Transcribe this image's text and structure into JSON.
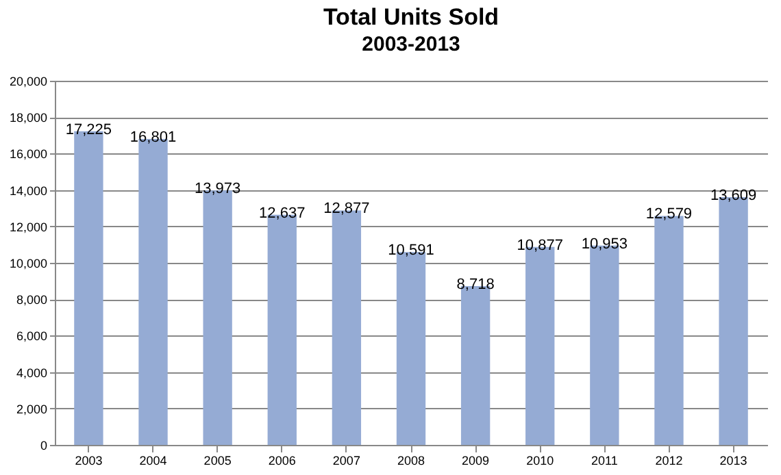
{
  "chart_data": {
    "type": "bar",
    "title": "Total Units Sold",
    "subtitle": "2003-2013",
    "categories": [
      "2003",
      "2004",
      "2005",
      "2006",
      "2007",
      "2008",
      "2009",
      "2010",
      "2011",
      "2012",
      "2013"
    ],
    "values": [
      17225,
      16801,
      13973,
      12637,
      12877,
      10591,
      8718,
      10877,
      10953,
      12579,
      13609
    ],
    "color": "#95abd4",
    "ylim": [
      0,
      20000
    ],
    "yticks": [
      {
        "value": 0,
        "label": "0"
      },
      {
        "value": 2000,
        "label": "2,000"
      },
      {
        "value": 4000,
        "label": "4,000"
      },
      {
        "value": 6000,
        "label": "6,000"
      },
      {
        "value": 8000,
        "label": "8,000"
      },
      {
        "value": 10000,
        "label": "10,000"
      },
      {
        "value": 12000,
        "label": "12,000"
      },
      {
        "value": 14000,
        "label": "14,000"
      },
      {
        "value": 16000,
        "label": "16,000"
      },
      {
        "value": 18000,
        "label": "18,000"
      },
      {
        "value": 20000,
        "label": "20,000"
      }
    ],
    "value_labels": [
      "17,225",
      "16,801",
      "13,973",
      "12,637",
      "12,877",
      "10,591",
      "8,718",
      "10,877",
      "10,953",
      "12,579",
      "13,609"
    ],
    "grid": true,
    "data_labels": true
  }
}
